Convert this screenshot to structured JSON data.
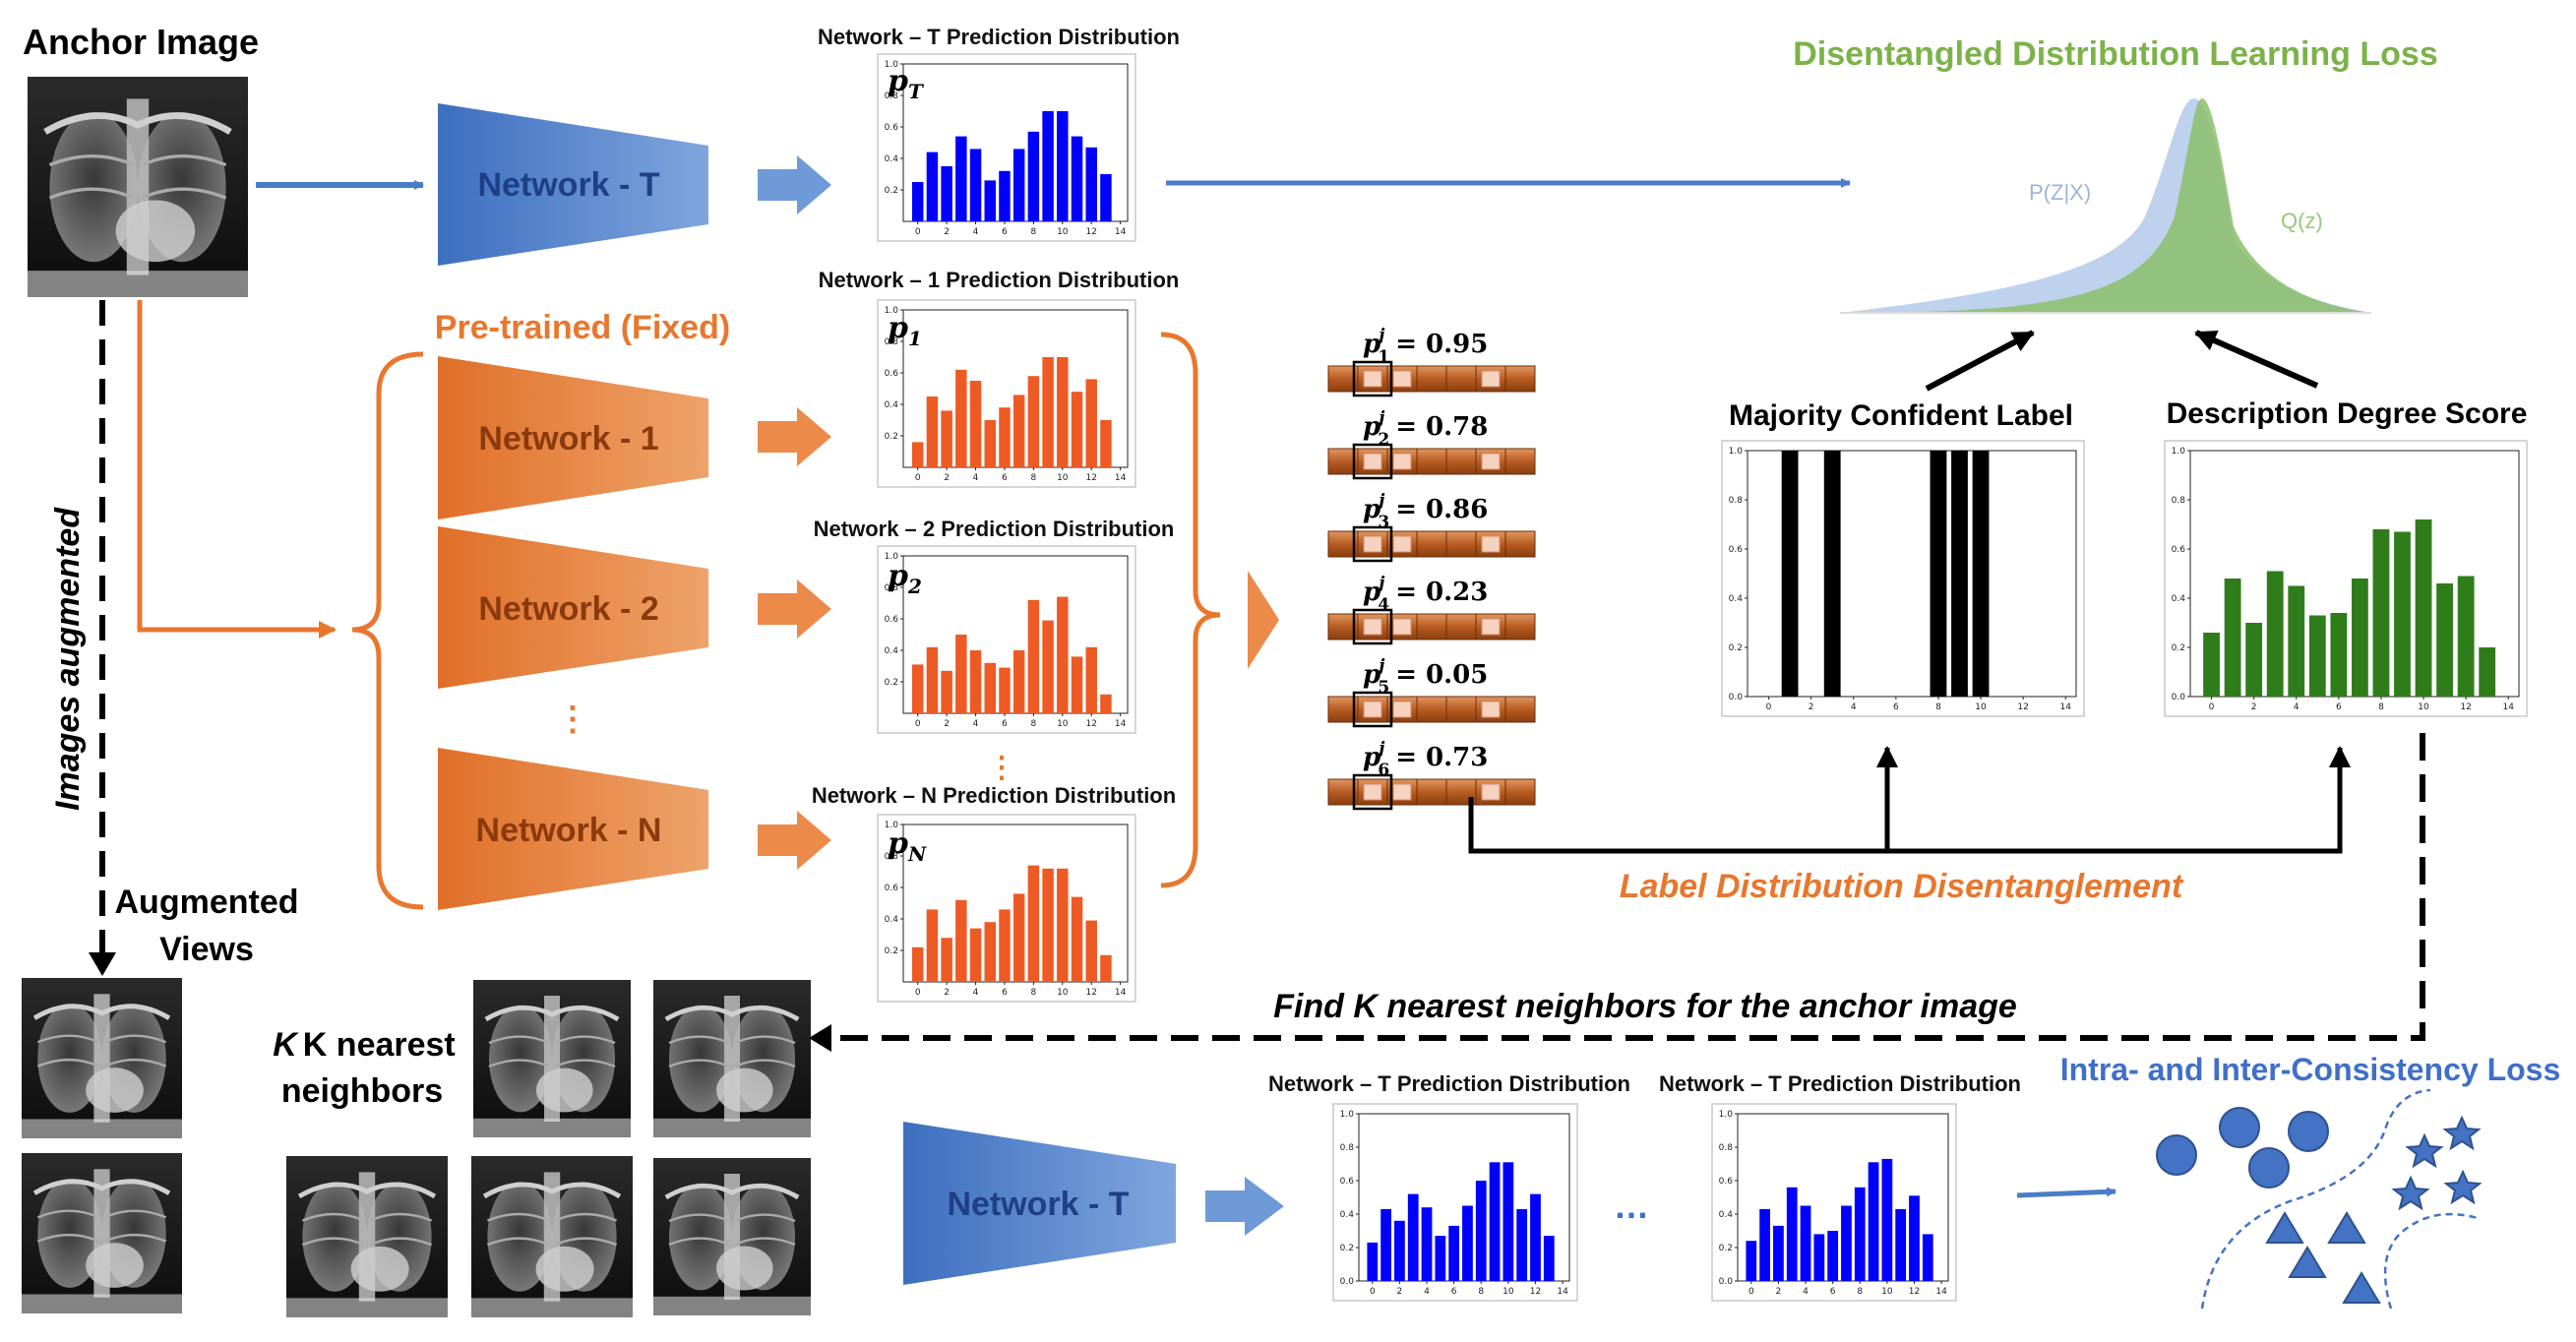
{
  "title_anchor": "Anchor Image",
  "title_augmented_views": [
    "Augmented",
    "Views"
  ],
  "label_images_augmented": "Images augmented",
  "label_pretrained": "Pre-trained (Fixed)",
  "label_knn": [
    "K nearest",
    "neighbors"
  ],
  "label_find_knn": "Find K nearest neighbors for the anchor image",
  "label_ldd": "Label Distribution Disentanglement",
  "label_ddl_loss": "Disentangled Distribution Learning Loss",
  "label_consistency_loss": "Intra- and Inter-Consistency Loss",
  "label_pzx": "P(Z|X)",
  "label_qz": "Q(z)",
  "label_majority": "Majority Confident Label",
  "label_description": "Description Degree Score",
  "label_ellipsis_dots": "…",
  "label_vdots": "⋮",
  "networks": {
    "teacher": "Network - T",
    "n1": "Network - 1",
    "n2": "Network - 2",
    "nN": "Network - N"
  },
  "dist_titles": {
    "t": "Network – T Prediction Distribution",
    "n1": "Network – 1 Prediction Distribution",
    "n2": "Network – 2 Prediction Distribution",
    "nN": "Network – N Prediction Distribution",
    "bottom1": "Network – T Prediction Distribution",
    "bottom2": "Network – T Prediction Distribution"
  },
  "dist_symbols": {
    "t": [
      "p",
      "T"
    ],
    "n1": [
      "p",
      "1"
    ],
    "n2": [
      "p",
      "2"
    ],
    "nN": [
      "p",
      "N"
    ]
  },
  "prob_rows": [
    {
      "sub": "1",
      "value": "0.95"
    },
    {
      "sub": "2",
      "value": "0.78"
    },
    {
      "sub": "3",
      "value": "0.86"
    },
    {
      "sub": "4",
      "value": "0.23"
    },
    {
      "sub": "5",
      "value": "0.05"
    },
    {
      "sub": "6",
      "value": "0.73"
    }
  ],
  "colors": {
    "blue": "#4a7cc8",
    "orange": "#e8772e",
    "green": "#7cb24a",
    "bar_blue": "#0000ff",
    "bar_orange": "#ee5a24",
    "bar_green": "#2e7d1a",
    "ldd_orange": "#e8772e",
    "consistency_blue": "#3f6fc9"
  },
  "chart_data": [
    {
      "id": "t",
      "type": "bar",
      "color": "#0000ff",
      "x": [
        0,
        1,
        2,
        3,
        4,
        5,
        6,
        7,
        8,
        9,
        10,
        11,
        12,
        13
      ],
      "values": [
        0.25,
        0.44,
        0.35,
        0.54,
        0.46,
        0.26,
        0.32,
        0.46,
        0.57,
        0.7,
        0.7,
        0.54,
        0.47,
        0.3
      ],
      "ylim": [
        0,
        1.0
      ],
      "xticks": [
        0,
        2,
        4,
        6,
        8,
        10,
        12,
        14
      ],
      "yticks": [
        0.2,
        0.4,
        0.6,
        0.8,
        1.0
      ]
    },
    {
      "id": "n1",
      "type": "bar",
      "color": "#ee5a24",
      "x": [
        0,
        1,
        2,
        3,
        4,
        5,
        6,
        7,
        8,
        9,
        10,
        11,
        12,
        13
      ],
      "values": [
        0.16,
        0.45,
        0.36,
        0.62,
        0.55,
        0.3,
        0.38,
        0.46,
        0.58,
        0.7,
        0.7,
        0.48,
        0.56,
        0.3
      ],
      "ylim": [
        0,
        1.0
      ],
      "xticks": [
        0,
        2,
        4,
        6,
        8,
        10,
        12,
        14
      ],
      "yticks": [
        0.2,
        0.4,
        0.6,
        0.8,
        1.0
      ]
    },
    {
      "id": "n2",
      "type": "bar",
      "color": "#ee5a24",
      "x": [
        0,
        1,
        2,
        3,
        4,
        5,
        6,
        7,
        8,
        9,
        10,
        11,
        12,
        13
      ],
      "values": [
        0.31,
        0.42,
        0.27,
        0.5,
        0.4,
        0.32,
        0.29,
        0.4,
        0.72,
        0.59,
        0.74,
        0.36,
        0.42,
        0.12
      ],
      "ylim": [
        0,
        1.0
      ],
      "xticks": [
        0,
        2,
        4,
        6,
        8,
        10,
        12,
        14
      ],
      "yticks": [
        0.2,
        0.4,
        0.6,
        0.8,
        1.0
      ]
    },
    {
      "id": "nN",
      "type": "bar",
      "color": "#ee5a24",
      "x": [
        0,
        1,
        2,
        3,
        4,
        5,
        6,
        7,
        8,
        9,
        10,
        11,
        12,
        13
      ],
      "values": [
        0.22,
        0.46,
        0.28,
        0.52,
        0.34,
        0.38,
        0.46,
        0.56,
        0.74,
        0.72,
        0.72,
        0.54,
        0.39,
        0.17
      ],
      "ylim": [
        0,
        1.0
      ],
      "xticks": [
        0,
        2,
        4,
        6,
        8,
        10,
        12,
        14
      ],
      "yticks": [
        0.2,
        0.4,
        0.6,
        0.8,
        1.0
      ]
    },
    {
      "id": "majority",
      "type": "bar",
      "color": "#000000",
      "x": [
        0,
        1,
        2,
        3,
        4,
        5,
        6,
        7,
        8,
        9,
        10,
        11,
        12,
        13
      ],
      "values": [
        0,
        1,
        0,
        1,
        0,
        0,
        0,
        0,
        1,
        1,
        1,
        0,
        0,
        0
      ],
      "ylim": [
        0,
        1.0
      ],
      "xticks": [
        0,
        2,
        4,
        6,
        8,
        10,
        12,
        14
      ],
      "yticks": [
        0.0,
        0.2,
        0.4,
        0.6,
        0.8,
        1.0
      ]
    },
    {
      "id": "description",
      "type": "bar",
      "color": "#2e7d1a",
      "x": [
        0,
        1,
        2,
        3,
        4,
        5,
        6,
        7,
        8,
        9,
        10,
        11,
        12,
        13
      ],
      "values": [
        0.26,
        0.48,
        0.3,
        0.51,
        0.45,
        0.33,
        0.34,
        0.48,
        0.68,
        0.67,
        0.72,
        0.46,
        0.49,
        0.2
      ],
      "ylim": [
        0,
        1.0
      ],
      "xticks": [
        0,
        2,
        4,
        6,
        8,
        10,
        12,
        14
      ],
      "yticks": [
        0.0,
        0.2,
        0.4,
        0.6,
        0.8,
        1.0
      ]
    },
    {
      "id": "bottom1",
      "type": "bar",
      "color": "#0000ff",
      "x": [
        0,
        1,
        2,
        3,
        4,
        5,
        6,
        7,
        8,
        9,
        10,
        11,
        12,
        13
      ],
      "values": [
        0.23,
        0.43,
        0.36,
        0.52,
        0.44,
        0.27,
        0.33,
        0.45,
        0.6,
        0.71,
        0.71,
        0.43,
        0.52,
        0.27
      ],
      "ylim": [
        0,
        1.0
      ],
      "xticks": [
        0,
        2,
        4,
        6,
        8,
        10,
        12,
        14
      ],
      "yticks": [
        0.0,
        0.2,
        0.4,
        0.6,
        0.8,
        1.0
      ]
    },
    {
      "id": "bottom2",
      "type": "bar",
      "color": "#0000ff",
      "x": [
        0,
        1,
        2,
        3,
        4,
        5,
        6,
        7,
        8,
        9,
        10,
        11,
        12,
        13
      ],
      "values": [
        0.24,
        0.43,
        0.33,
        0.56,
        0.45,
        0.28,
        0.3,
        0.45,
        0.56,
        0.71,
        0.73,
        0.43,
        0.51,
        0.28
      ],
      "ylim": [
        0,
        1.0
      ],
      "xticks": [
        0,
        2,
        4,
        6,
        8,
        10,
        12,
        14
      ],
      "yticks": [
        0.0,
        0.2,
        0.4,
        0.6,
        0.8,
        1.0
      ]
    }
  ]
}
